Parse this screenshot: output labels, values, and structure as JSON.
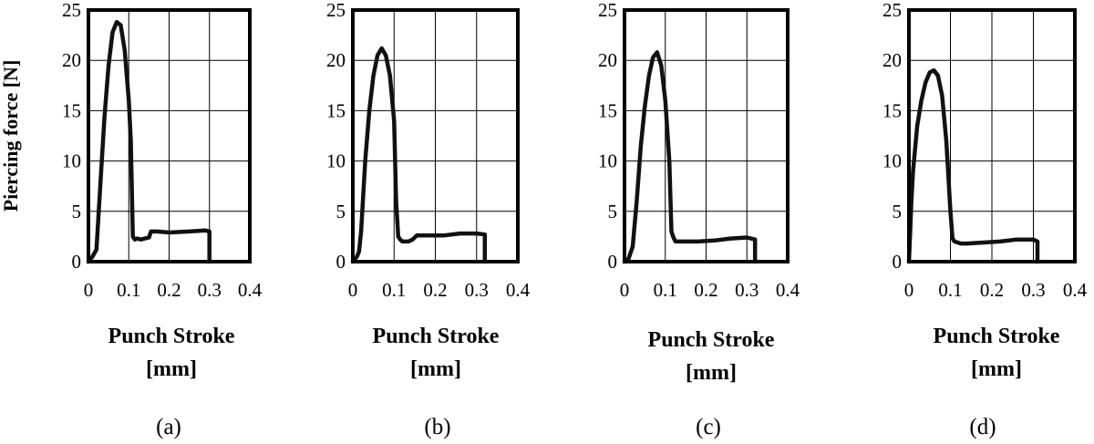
{
  "figure": {
    "ylabel": "Piercing force [N]",
    "xlabel_line1": "Punch Stroke",
    "xlabel_line2": "[mm]"
  },
  "chart_data": [
    {
      "type": "line",
      "caption": "(a)",
      "xlabel": "Punch Stroke [mm]",
      "ylabel": "Piercing force [N]",
      "xlim": [
        0,
        0.4
      ],
      "ylim": [
        0,
        25
      ],
      "xticks": [
        "0",
        "0.1",
        "0.2",
        "0.3",
        "0.4"
      ],
      "yticks": [
        "0",
        "5",
        "10",
        "15",
        "20",
        "25"
      ],
      "grid": true,
      "series": [
        {
          "x": [
            0.0,
            0.01,
            0.02,
            0.03,
            0.04,
            0.05,
            0.06,
            0.07,
            0.08,
            0.09,
            0.1,
            0.105,
            0.11,
            0.115,
            0.12,
            0.13,
            0.14,
            0.15,
            0.155,
            0.17,
            0.2,
            0.25,
            0.29,
            0.3,
            0.3
          ],
          "y": [
            0.0,
            0.5,
            1.2,
            8.0,
            14.5,
            19.5,
            22.8,
            23.8,
            23.5,
            21.0,
            16.0,
            12.0,
            2.5,
            2.2,
            2.3,
            2.2,
            2.3,
            2.4,
            3.0,
            3.0,
            2.9,
            3.0,
            3.1,
            3.0,
            0.0
          ]
        }
      ]
    },
    {
      "type": "line",
      "caption": "(b)",
      "xlabel": "Punch Stroke [mm]",
      "ylabel": "",
      "xlim": [
        0,
        0.4
      ],
      "ylim": [
        0,
        25
      ],
      "xticks": [
        "0",
        "0.1",
        "0.2",
        "0.3",
        "0.4"
      ],
      "yticks": [
        "0",
        "5",
        "10",
        "15",
        "20",
        "25"
      ],
      "grid": true,
      "series": [
        {
          "x": [
            0.0,
            0.01,
            0.015,
            0.02,
            0.03,
            0.04,
            0.05,
            0.06,
            0.07,
            0.08,
            0.09,
            0.1,
            0.105,
            0.11,
            0.115,
            0.12,
            0.135,
            0.145,
            0.155,
            0.18,
            0.22,
            0.26,
            0.3,
            0.32,
            0.32
          ],
          "y": [
            0.0,
            0.5,
            1.0,
            3.0,
            10.0,
            15.0,
            18.5,
            20.5,
            21.2,
            20.5,
            18.5,
            14.0,
            6.0,
            2.5,
            2.2,
            2.0,
            2.0,
            2.2,
            2.6,
            2.6,
            2.6,
            2.8,
            2.8,
            2.7,
            0.0
          ]
        }
      ]
    },
    {
      "type": "line",
      "caption": "(c)",
      "xlabel": "Punch Stroke [mm]",
      "ylabel": "",
      "xlim": [
        0,
        0.4
      ],
      "ylim": [
        0,
        25
      ],
      "xticks": [
        "0",
        "0.1",
        "0.2",
        "0.3",
        "0.4"
      ],
      "yticks": [
        "0",
        "5",
        "10",
        "15",
        "20",
        "25"
      ],
      "grid": true,
      "series": [
        {
          "x": [
            0.0,
            0.01,
            0.02,
            0.03,
            0.04,
            0.05,
            0.06,
            0.07,
            0.08,
            0.09,
            0.1,
            0.11,
            0.115,
            0.12,
            0.125,
            0.14,
            0.18,
            0.22,
            0.26,
            0.3,
            0.32,
            0.32
          ],
          "y": [
            0.0,
            0.3,
            1.5,
            6.0,
            11.5,
            15.5,
            18.5,
            20.3,
            20.8,
            19.5,
            16.0,
            10.0,
            3.0,
            2.4,
            2.0,
            2.0,
            2.0,
            2.1,
            2.3,
            2.4,
            2.2,
            0.0
          ]
        }
      ]
    },
    {
      "type": "line",
      "caption": "(d)",
      "xlabel": "Punch Stroke [mm]",
      "ylabel": "",
      "xlim": [
        0,
        0.4
      ],
      "ylim": [
        0,
        25
      ],
      "xticks": [
        "0",
        "0.1",
        "0.2",
        "0.3",
        "0.4"
      ],
      "yticks": [
        "0",
        "5",
        "10",
        "15",
        "20",
        "25"
      ],
      "grid": true,
      "series": [
        {
          "x": [
            0.0,
            0.003,
            0.006,
            0.01,
            0.02,
            0.03,
            0.04,
            0.05,
            0.06,
            0.07,
            0.08,
            0.09,
            0.1,
            0.105,
            0.11,
            0.125,
            0.14,
            0.18,
            0.22,
            0.26,
            0.3,
            0.31,
            0.31
          ],
          "y": [
            0.0,
            3.0,
            6.0,
            9.0,
            13.5,
            16.0,
            17.8,
            18.8,
            19.0,
            18.5,
            16.5,
            12.0,
            5.0,
            2.3,
            2.0,
            1.8,
            1.8,
            1.9,
            2.0,
            2.2,
            2.2,
            2.0,
            0.0
          ]
        }
      ]
    }
  ]
}
